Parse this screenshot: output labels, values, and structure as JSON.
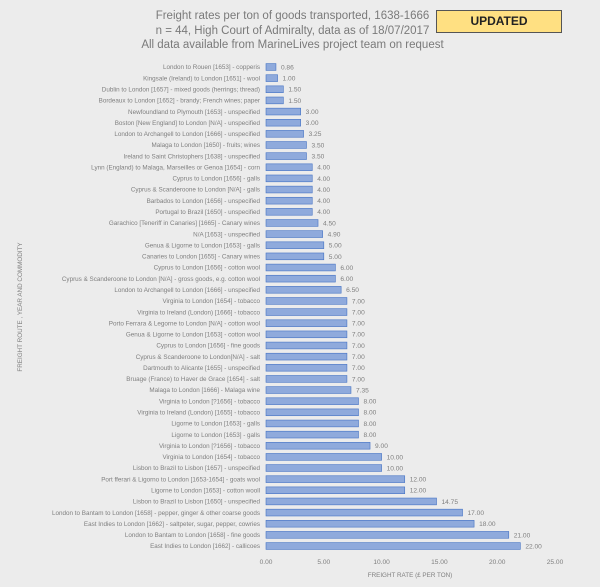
{
  "title_lines": [
    "Freight rates per ton of goods transported, 1638-1666",
    "n = 44, High Court of Admiralty, data as of 18/07/2017",
    "All data available from MarineLives project team on request"
  ],
  "badge": "UPDATED",
  "colors": {
    "bar_fill": "#8faadc",
    "bar_edge": "#4472c4",
    "badge": "#ffe082",
    "background": "#ececec"
  },
  "chart_data": {
    "type": "bar",
    "orientation": "horizontal",
    "xlabel": "FREIGHT RATE (£ PER TON)",
    "ylabel": "FREIGHT ROUTE , YEAR AND COMMODITY",
    "xlim": [
      0,
      25
    ],
    "xticks": [
      "0.00",
      "5.00",
      "10.00",
      "15.00",
      "20.00",
      "25.00"
    ],
    "grid": false,
    "data_labels": true,
    "categories": [
      "London to Rouen [1653] - copperis",
      "Kingsale (Ireland) to London [1651] - wool",
      "Dublin to London [1657] - mixed goods (herrings; thread)",
      "Bordeaux to London [1652] - brandy; French wines; paper",
      "Newfoundland to Plymouth [1653] - unspecified",
      "Boston [New England] to London [N/A] - unspecified",
      "London to Archangell to London [1666] - unspecified",
      "Malaga to London [1650] - fruits; wines",
      "Ireland to Saint Christophers [1638] - unspecified",
      "Lynn (England) to Malaga, Marseilles or Genoa [1654] - corn",
      "Cyprus to London [1656] - galls",
      "Cyprus & Scanderoone to London [N/A] - galls",
      "Barbados to London [1656] - unspecified",
      "Portugal to Brazil [1650] - unspecified",
      "Garachico [Teneriff in Canaries] [1665] - Canary wines",
      "N/A [1653] - unspecified",
      "Genua & Ligorne to London [1653] - galls",
      "Canaries to London [1655] - Canary wines",
      "Cyprus to London [1656] - cotton wool",
      "Cyprus & Scanderoone to London [N/A] - gross goods, e.g. cotton wool",
      "London to Archangell to London [1666] - unspecified",
      "Virginia to London [1654] - tobacco",
      "Virginia to Ireland (London) [1666] - tobacco",
      "Porto Ferrara & Legorne to London [N/A] - cotton wool",
      "Genua & Ligorne to London [1653] - cotton wool",
      "Cyprus to London [1656] - fine goods",
      "Cyprus & Scanderoone to London[N/A] - salt",
      "Dartmouth to Alicante [1655] - unspecified",
      "Bruage (France) to Haver de Grace [1654] - salt",
      "Malaga to London [1666] - Malaga wine",
      "Virginia to London [?1656] - tobacco",
      "Virginia to Ireland (London) [1655] - tobacco",
      "Ligorne to London [1653] - galls",
      "Ligorne to London [1653] - galls",
      "Virginia to London [?1656] - tobacco",
      "Virginia to London [1654] - tobacco",
      "Lisbon to Brazil to Lisbon [1657] - unspecified",
      "Port fferari & Ligorno to London [1653-1654] - goats wool",
      "Ligorne to London [1653] - cotton wooll",
      "Lisbon to Brazil to Lisbon [1650] - unspecified",
      "London to Bantam to London [1658] - pepper, ginger & other coarse goods",
      "East Indies to London [1662] - saltpeter, sugar, pepper, cowries",
      "London to Bantam to London [1658] - fine goods",
      "East Indies to London [1662] - callicoes"
    ],
    "values": [
      0.86,
      1.0,
      1.5,
      1.5,
      3.0,
      3.0,
      3.25,
      3.5,
      3.5,
      4.0,
      4.0,
      4.0,
      4.0,
      4.0,
      4.5,
      4.9,
      5.0,
      5.0,
      6.0,
      6.0,
      6.5,
      7.0,
      7.0,
      7.0,
      7.0,
      7.0,
      7.0,
      7.0,
      7.0,
      7.35,
      8.0,
      8.0,
      8.0,
      8.0,
      9.0,
      10.0,
      10.0,
      12.0,
      12.0,
      14.75,
      17.0,
      18.0,
      21.0,
      22.0
    ],
    "value_labels": [
      "0.86",
      "1.00",
      "1.50",
      "1.50",
      "3.00",
      "3.00",
      "3.25",
      "3.50",
      "3.50",
      "4.00",
      "4.00",
      "4.00",
      "4.00",
      "4.00",
      "4.50",
      "4.90",
      "5.00",
      "5.00",
      "6.00",
      "6.00",
      "6.50",
      "7.00",
      "7.00",
      "7.00",
      "7.00",
      "7.00",
      "7.00",
      "7.00",
      "7.00",
      "7.35",
      "8.00",
      "8.00",
      "8.00",
      "8.00",
      "9.00",
      "10.00",
      "10.00",
      "12.00",
      "12.00",
      "14.75",
      "17.00",
      "18.00",
      "21.00",
      "22.00"
    ]
  }
}
